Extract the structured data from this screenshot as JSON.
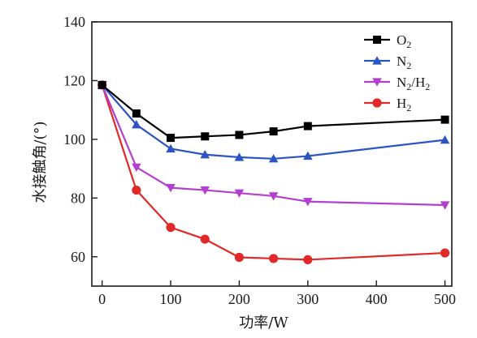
{
  "chart_data": {
    "type": "line",
    "xlabel": "功率/W",
    "ylabel": "水接触角/(°)",
    "xlim": [
      -15,
      510
    ],
    "ylim": [
      50,
      140
    ],
    "xticks": [
      0,
      100,
      200,
      300,
      400,
      500
    ],
    "yticks": [
      60,
      80,
      100,
      120,
      140
    ],
    "grid": false,
    "legend_position": "top-right",
    "x": [
      0,
      50,
      100,
      150,
      200,
      250,
      300,
      500
    ],
    "series": [
      {
        "name": "O₂",
        "name_parts": [
          "O",
          "2",
          ""
        ],
        "color": "#000000",
        "marker": "square",
        "values": [
          118.5,
          108.8,
          100.5,
          101.0,
          101.5,
          102.7,
          104.5,
          106.7
        ]
      },
      {
        "name": "N₂",
        "name_parts": [
          "N",
          "2",
          ""
        ],
        "color": "#2b54c2",
        "marker": "triangle-up",
        "values": [
          118.5,
          105.0,
          96.8,
          94.8,
          93.9,
          93.4,
          94.3,
          99.8
        ]
      },
      {
        "name": "N₂/H₂",
        "name_parts": [
          "N",
          "2",
          "/H",
          "2"
        ],
        "color": "#b23fcf",
        "marker": "triangle-down",
        "values": [
          118.5,
          90.5,
          83.5,
          82.7,
          81.7,
          80.7,
          78.8,
          77.6
        ]
      },
      {
        "name": "H₂",
        "name_parts": [
          "H",
          "2",
          ""
        ],
        "color": "#e1292a",
        "marker": "circle",
        "values": [
          118.5,
          82.7,
          70.0,
          66.0,
          59.8,
          59.4,
          59.0,
          61.3
        ]
      }
    ]
  }
}
